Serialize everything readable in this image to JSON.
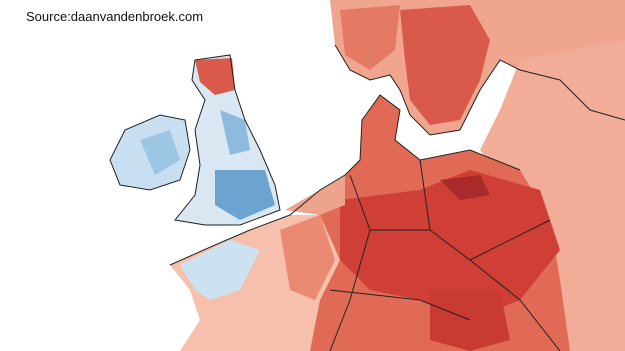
{
  "source": "Source:daanvandenbroek.com"
}
